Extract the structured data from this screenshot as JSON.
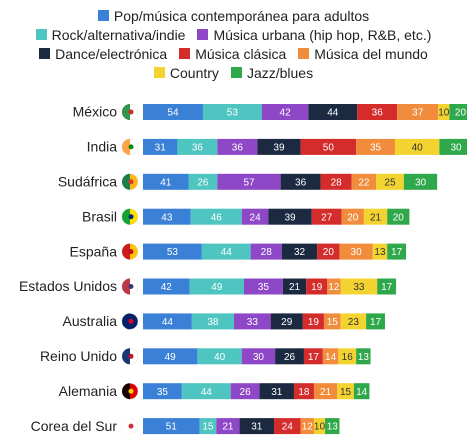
{
  "chart_data": {
    "type": "stacked-bar",
    "orientation": "horizontal",
    "categories": [
      "México",
      "India",
      "Sudáfrica",
      "Brasil",
      "España",
      "Estados Unidos",
      "Australia",
      "Reino Unido",
      "Alemania",
      "Corea del Sur"
    ],
    "series": [
      {
        "name": "Pop/música contemporánea para adultos",
        "color": "#3a80d6",
        "values": [
          54,
          31,
          41,
          43,
          53,
          42,
          44,
          49,
          35,
          51
        ]
      },
      {
        "name": "Rock/alternativa/indie",
        "color": "#4ec5c1",
        "values": [
          53,
          36,
          26,
          46,
          44,
          49,
          38,
          40,
          44,
          15
        ]
      },
      {
        "name": "Música urbana (hip hop, R&B, etc.)",
        "color": "#8e47c6",
        "values": [
          42,
          36,
          57,
          24,
          28,
          35,
          33,
          30,
          26,
          21
        ]
      },
      {
        "name": "Dance/electrónica",
        "color": "#1b2a41",
        "values": [
          44,
          39,
          36,
          39,
          32,
          21,
          29,
          26,
          31,
          31
        ]
      },
      {
        "name": "Música clásica",
        "color": "#d42b2b",
        "values": [
          36,
          50,
          28,
          27,
          20,
          19,
          19,
          17,
          18,
          24
        ]
      },
      {
        "name": "Música del mundo",
        "color": "#f08c3c",
        "values": [
          37,
          35,
          22,
          20,
          30,
          12,
          15,
          14,
          21,
          12
        ]
      },
      {
        "name": "Country",
        "color": "#f3d330",
        "values": [
          10,
          40,
          25,
          21,
          13,
          33,
          23,
          16,
          15,
          10
        ]
      },
      {
        "name": "Jazz/blues",
        "color": "#2fa84b",
        "values": [
          20,
          30,
          30,
          20,
          17,
          17,
          17,
          13,
          14,
          13
        ]
      }
    ]
  }
}
